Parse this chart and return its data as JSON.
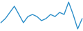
{
  "values": [
    -2,
    0,
    3,
    6,
    2,
    -2,
    1,
    2,
    1,
    -1,
    0,
    2,
    1,
    3,
    2,
    8,
    2,
    -5,
    0
  ],
  "line_color": "#2b8ec9",
  "line_width": 1.0,
  "background_color": "#ffffff"
}
